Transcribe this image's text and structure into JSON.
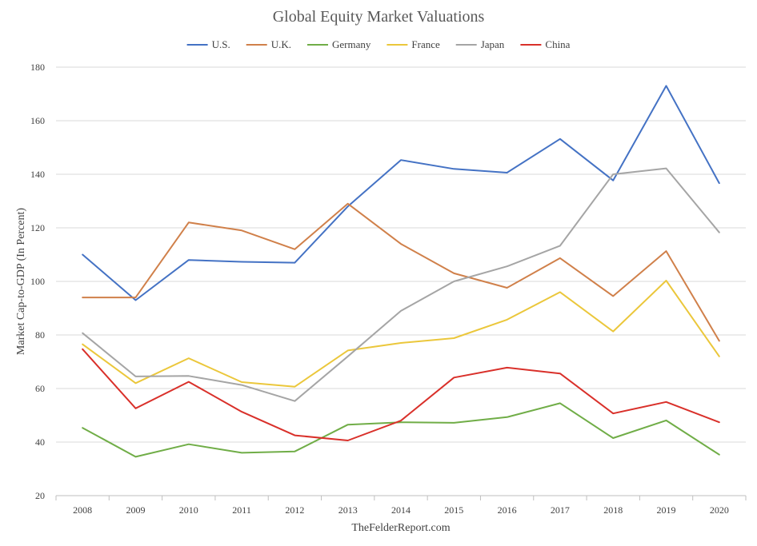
{
  "chart_data": {
    "type": "line",
    "title": "Global Equity Market Valuations",
    "xlabel": "",
    "ylabel": "Market Cap-to-GDP (In Percent)",
    "source": "TheFelderReport.com",
    "categories": [
      "2008",
      "2009",
      "2010",
      "2011",
      "2012",
      "2013",
      "2014",
      "2015",
      "2016",
      "2017",
      "2018",
      "2019",
      "2020"
    ],
    "ylim": [
      20,
      180
    ],
    "yticks": [
      20,
      40,
      60,
      80,
      100,
      120,
      140,
      160,
      180
    ],
    "grid": true,
    "legend_position": "top",
    "series": [
      {
        "name": "U.S.",
        "color": "#4472c4",
        "values": [
          110,
          93,
          108,
          107.3,
          107,
          128,
          145.3,
          142,
          140.6,
          153.2,
          137.7,
          173,
          136.7
        ]
      },
      {
        "name": "U.K.",
        "color": "#d0804a",
        "values": [
          94,
          94,
          122,
          119,
          112,
          129,
          114,
          103,
          97.6,
          108.7,
          94.5,
          111.3,
          77.8
        ]
      },
      {
        "name": "Germany",
        "color": "#70ad47",
        "values": [
          45.3,
          34.5,
          39.2,
          36,
          36.5,
          46.5,
          47.4,
          47.2,
          49.3,
          54.5,
          41.5,
          48.1,
          35.3
        ]
      },
      {
        "name": "France",
        "color": "#ebc73b",
        "values": [
          76.5,
          62,
          71.3,
          62.4,
          60.7,
          74.2,
          77,
          78.8,
          85.7,
          96,
          81.3,
          100.3,
          72
        ]
      },
      {
        "name": "Japan",
        "color": "#a5a5a5",
        "values": [
          80.7,
          64.5,
          64.7,
          61.3,
          55.3,
          72,
          89,
          100,
          105.6,
          113.3,
          140,
          142.2,
          118.3
        ]
      },
      {
        "name": "China",
        "color": "#d9302a",
        "values": [
          74.7,
          52.6,
          62.5,
          51.3,
          42.5,
          40.6,
          48,
          64.1,
          67.8,
          65.6,
          50.7,
          55,
          47.4
        ]
      }
    ]
  }
}
